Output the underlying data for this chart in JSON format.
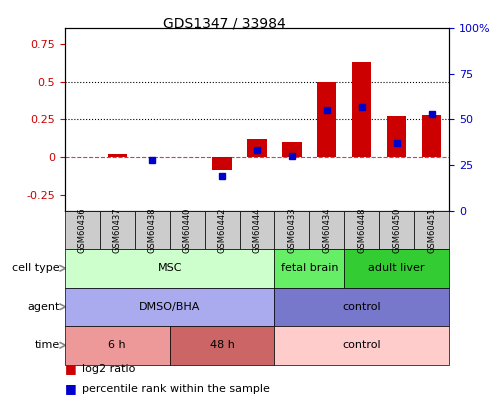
{
  "title": "GDS1347 / 33984",
  "samples": [
    "GSM60436",
    "GSM60437",
    "GSM60438",
    "GSM60440",
    "GSM60442",
    "GSM60444",
    "GSM60433",
    "GSM60434",
    "GSM60448",
    "GSM60450",
    "GSM60451"
  ],
  "log2_ratio": [
    0.0,
    0.02,
    0.0,
    0.0,
    -0.08,
    0.12,
    0.1,
    0.5,
    0.63,
    0.27,
    0.28
  ],
  "percentile_rank": [
    null,
    null,
    28,
    null,
    19,
    33,
    30,
    55,
    57,
    37,
    53
  ],
  "bar_color": "#cc0000",
  "dot_color": "#0000cc",
  "ylim_left": [
    -0.35,
    0.85
  ],
  "ylim_right": [
    0,
    100
  ],
  "yticks_left": [
    -0.25,
    0.0,
    0.25,
    0.5,
    0.75
  ],
  "yticks_right": [
    0,
    25,
    50,
    75,
    100
  ],
  "hline_dotted": [
    0.25,
    0.5
  ],
  "hline_dashed_color": "#cc4444",
  "cell_type_groups": [
    {
      "label": "MSC",
      "start": 0,
      "end": 6,
      "color": "#ccffcc"
    },
    {
      "label": "fetal brain",
      "start": 6,
      "end": 8,
      "color": "#66ee66"
    },
    {
      "label": "adult liver",
      "start": 8,
      "end": 11,
      "color": "#33cc33"
    }
  ],
  "agent_groups": [
    {
      "label": "DMSO/BHA",
      "start": 0,
      "end": 6,
      "color": "#aaaaee"
    },
    {
      "label": "control",
      "start": 6,
      "end": 11,
      "color": "#7777cc"
    }
  ],
  "time_groups": [
    {
      "label": "6 h",
      "start": 0,
      "end": 3,
      "color": "#ee9999"
    },
    {
      "label": "48 h",
      "start": 3,
      "end": 6,
      "color": "#cc6666"
    },
    {
      "label": "control",
      "start": 6,
      "end": 11,
      "color": "#ffcccc"
    }
  ],
  "row_labels": [
    "cell type",
    "agent",
    "time"
  ],
  "sample_box_color": "#cccccc",
  "legend_items": [
    {
      "label": "log2 ratio",
      "color": "#cc0000"
    },
    {
      "label": "percentile rank within the sample",
      "color": "#0000cc"
    }
  ]
}
